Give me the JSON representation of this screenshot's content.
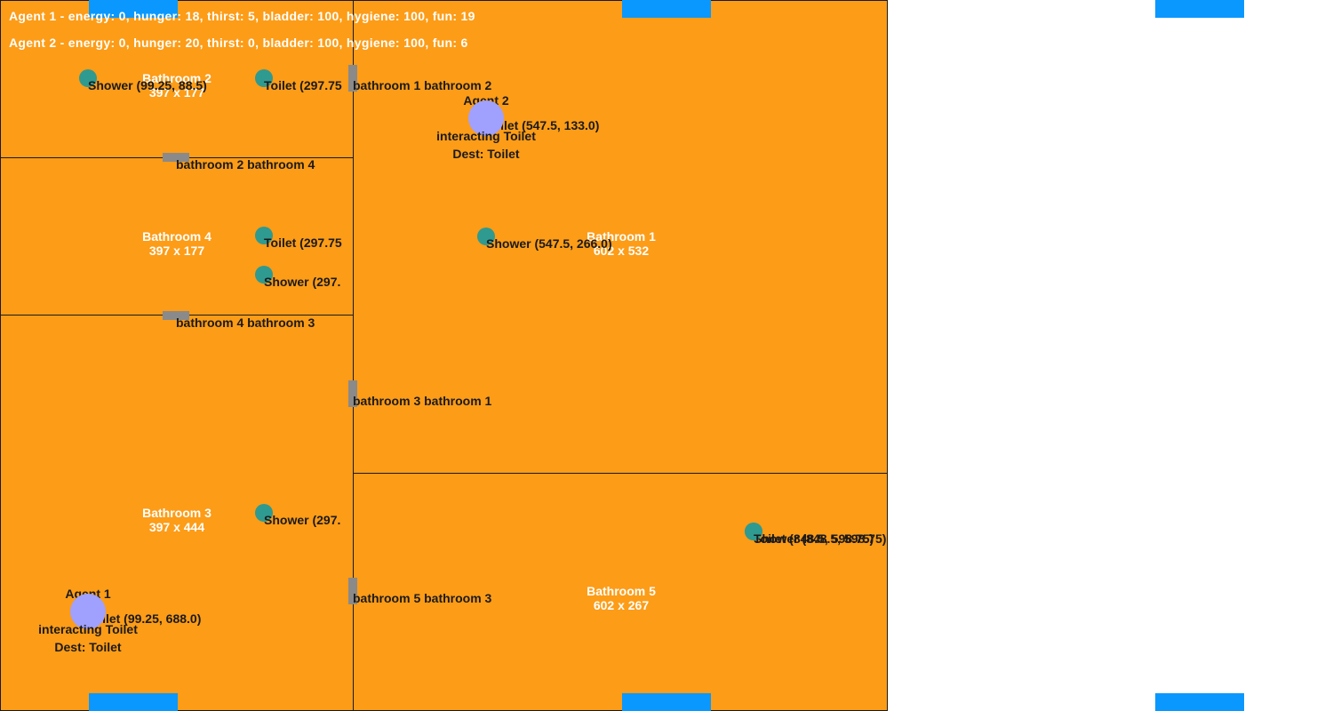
{
  "stats": {
    "agent1": "Agent 1 - energy: 0, hunger: 18, thirst: 5, bladder: 100, hygiene: 100, fun: 19",
    "agent2": "Agent 2 - energy: 0, hunger: 20, thirst: 0, bladder: 100, hygiene: 100, fun: 6"
  },
  "rooms": {
    "bathroom2": {
      "name": "Bathroom 2",
      "size": "397 x 177"
    },
    "bathroom4": {
      "name": "Bathroom 4",
      "size": "397 x 177"
    },
    "bathroom3": {
      "name": "Bathroom 3",
      "size": "397 x 444"
    },
    "bathroom1": {
      "name": "Bathroom 1",
      "size": "602 x 532"
    },
    "bathroom5": {
      "name": "Bathroom 5",
      "size": "602 x 267"
    }
  },
  "items": {
    "b2_shower": "Shower (99.25, 88.5)",
    "b2_toilet": "Toilet (297.75",
    "b4_toilet": "Toilet (297.75",
    "b4_shower": "Shower (297.",
    "b3_shower": "Shower (297.",
    "b3_toilet": "Toilet (99.25, 688.0)",
    "b1_toilet": "Toilet (547.5, 133.0)",
    "b1_shower": "Shower (547.5, 266.0)",
    "b5_shower": "Shower (848.5, 598.75)",
    "b5_toilet": "Toilet (848.5, 598.75)"
  },
  "doors": {
    "d12": "bathroom 1 bathroom 2",
    "d24": "bathroom 2 bathroom 4",
    "d43": "bathroom 4 bathroom 3",
    "d31": "bathroom 3 bathroom 1",
    "d53": "bathroom 5 bathroom 3"
  },
  "agents": {
    "agent1": {
      "name": "Agent 1",
      "status": "interacting Toilet",
      "dest": "Dest: Toilet"
    },
    "agent2": {
      "name": "Agent 2",
      "status": "interacting Toilet",
      "dest": "Dest: Toilet"
    }
  },
  "colors": {
    "floor": "#fd9c17",
    "item": "#2f9a90",
    "agent": "#a0a0ff",
    "door": "#8a8a8a",
    "window": "#0a98ff"
  }
}
